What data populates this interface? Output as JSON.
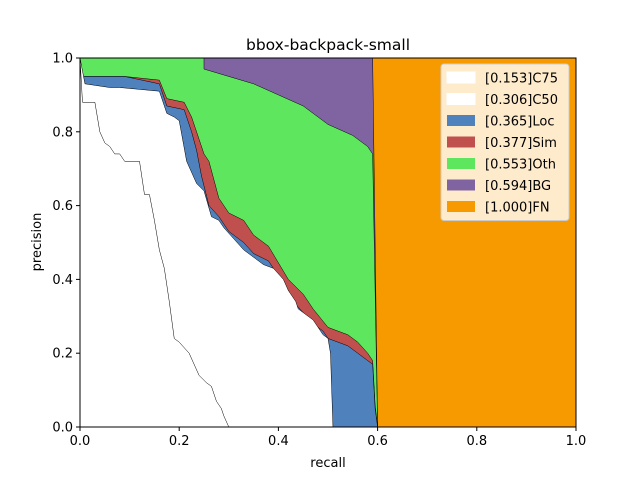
{
  "chart_data": {
    "type": "area",
    "title": "bbox-backpack-small",
    "xlabel": "recall",
    "ylabel": "precision",
    "xlim": [
      0,
      1
    ],
    "ylim": [
      0,
      1
    ],
    "xticks": [
      "0.0",
      "0.2",
      "0.4",
      "0.6",
      "0.8",
      "1.0"
    ],
    "yticks": [
      "0.0",
      "0.2",
      "0.4",
      "0.6",
      "0.8",
      "1.0"
    ],
    "grid": false,
    "legend_position": "top-right",
    "series": [
      {
        "name": "[0.153]C75",
        "color": "#ffffff",
        "points": [
          [
            0,
            1.0
          ],
          [
            0.005,
            0.88
          ],
          [
            0.03,
            0.88
          ],
          [
            0.04,
            0.8
          ],
          [
            0.05,
            0.77
          ],
          [
            0.06,
            0.76
          ],
          [
            0.07,
            0.74
          ],
          [
            0.08,
            0.74
          ],
          [
            0.09,
            0.72
          ],
          [
            0.12,
            0.72
          ],
          [
            0.13,
            0.63
          ],
          [
            0.14,
            0.63
          ],
          [
            0.15,
            0.56
          ],
          [
            0.16,
            0.48
          ],
          [
            0.17,
            0.43
          ],
          [
            0.18,
            0.34
          ],
          [
            0.19,
            0.24
          ],
          [
            0.2,
            0.23
          ],
          [
            0.22,
            0.2
          ],
          [
            0.24,
            0.14
          ],
          [
            0.255,
            0.12
          ],
          [
            0.265,
            0.11
          ],
          [
            0.275,
            0.07
          ],
          [
            0.285,
            0.05
          ],
          [
            0.29,
            0.03
          ],
          [
            0.3,
            0.0
          ]
        ]
      },
      {
        "name": "[0.306]C50",
        "color": "#ffffff",
        "points": [
          [
            0,
            1.0
          ],
          [
            0.01,
            0.93
          ],
          [
            0.06,
            0.92
          ],
          [
            0.08,
            0.92
          ],
          [
            0.16,
            0.91
          ],
          [
            0.175,
            0.85
          ],
          [
            0.19,
            0.84
          ],
          [
            0.2,
            0.83
          ],
          [
            0.215,
            0.72
          ],
          [
            0.235,
            0.66
          ],
          [
            0.25,
            0.64
          ],
          [
            0.265,
            0.57
          ],
          [
            0.28,
            0.56
          ],
          [
            0.29,
            0.54
          ],
          [
            0.31,
            0.51
          ],
          [
            0.33,
            0.48
          ],
          [
            0.36,
            0.45
          ],
          [
            0.37,
            0.44
          ],
          [
            0.39,
            0.43
          ],
          [
            0.41,
            0.4
          ],
          [
            0.42,
            0.37
          ],
          [
            0.435,
            0.34
          ],
          [
            0.44,
            0.32
          ],
          [
            0.45,
            0.31
          ],
          [
            0.46,
            0.3
          ],
          [
            0.47,
            0.29
          ],
          [
            0.48,
            0.27
          ],
          [
            0.49,
            0.25
          ],
          [
            0.5,
            0.24
          ],
          [
            0.505,
            0.2
          ],
          [
            0.51,
            0.0
          ]
        ]
      },
      {
        "name": "[0.365]Loc",
        "color": "#4f81bd",
        "points": [
          [
            0,
            1.0
          ],
          [
            0.005,
            0.95
          ],
          [
            0.09,
            0.95
          ],
          [
            0.16,
            0.93
          ],
          [
            0.175,
            0.87
          ],
          [
            0.21,
            0.86
          ],
          [
            0.225,
            0.8
          ],
          [
            0.235,
            0.75
          ],
          [
            0.245,
            0.68
          ],
          [
            0.26,
            0.6
          ],
          [
            0.28,
            0.57
          ],
          [
            0.3,
            0.53
          ],
          [
            0.33,
            0.5
          ],
          [
            0.35,
            0.47
          ],
          [
            0.38,
            0.45
          ],
          [
            0.42,
            0.37
          ],
          [
            0.43,
            0.34
          ],
          [
            0.45,
            0.31
          ],
          [
            0.47,
            0.28
          ],
          [
            0.49,
            0.26
          ],
          [
            0.5,
            0.24
          ],
          [
            0.54,
            0.22
          ],
          [
            0.56,
            0.2
          ],
          [
            0.58,
            0.18
          ],
          [
            0.59,
            0.17
          ],
          [
            0.595,
            0.05
          ],
          [
            0.6,
            0.0
          ]
        ]
      },
      {
        "name": "[0.377]Sim",
        "color": "#c0504d",
        "points": [
          [
            0,
            1.0
          ],
          [
            0.005,
            0.95
          ],
          [
            0.09,
            0.95
          ],
          [
            0.16,
            0.94
          ],
          [
            0.175,
            0.89
          ],
          [
            0.21,
            0.88
          ],
          [
            0.225,
            0.84
          ],
          [
            0.24,
            0.78
          ],
          [
            0.25,
            0.74
          ],
          [
            0.26,
            0.72
          ],
          [
            0.28,
            0.62
          ],
          [
            0.3,
            0.58
          ],
          [
            0.33,
            0.56
          ],
          [
            0.35,
            0.52
          ],
          [
            0.38,
            0.49
          ],
          [
            0.42,
            0.4
          ],
          [
            0.45,
            0.36
          ],
          [
            0.47,
            0.32
          ],
          [
            0.5,
            0.27
          ],
          [
            0.54,
            0.25
          ],
          [
            0.56,
            0.23
          ],
          [
            0.58,
            0.2
          ],
          [
            0.59,
            0.18
          ],
          [
            0.595,
            0.06
          ],
          [
            0.6,
            0.0
          ]
        ]
      },
      {
        "name": "[0.553]Oth",
        "color": "#5ee65e",
        "points": [
          [
            0,
            1.0
          ],
          [
            0.25,
            1.0
          ],
          [
            0.25,
            0.97
          ],
          [
            0.3,
            0.95
          ],
          [
            0.35,
            0.93
          ],
          [
            0.4,
            0.9
          ],
          [
            0.45,
            0.87
          ],
          [
            0.5,
            0.82
          ],
          [
            0.55,
            0.79
          ],
          [
            0.58,
            0.76
          ],
          [
            0.59,
            0.74
          ],
          [
            0.6,
            0.0
          ]
        ]
      },
      {
        "name": "[0.594]BG",
        "color": "#8064a2",
        "points": [
          [
            0,
            1.0
          ],
          [
            0.59,
            1.0
          ],
          [
            0.6,
            0.0
          ]
        ]
      },
      {
        "name": "[1.000]FN",
        "color": "#f79a00",
        "points": [
          [
            0,
            1.0
          ],
          [
            1.0,
            1.0
          ],
          [
            1.0,
            0.0
          ]
        ]
      }
    ]
  }
}
